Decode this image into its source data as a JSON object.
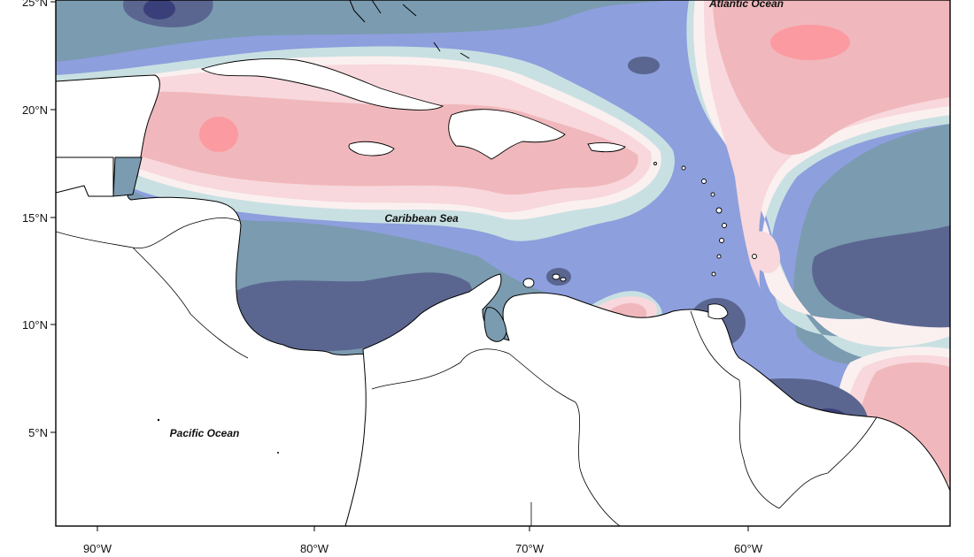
{
  "map": {
    "lat_labels": [
      "25°N",
      "20°N",
      "15°N",
      "10°N",
      "5°N"
    ],
    "lon_labels": [
      "90°W",
      "80°W",
      "70°W",
      "60°W"
    ],
    "ocean_labels": {
      "atlantic": "Atlantic Ocean",
      "caribbean": "Caribbean Sea",
      "pacific": "Pacific Ocean"
    },
    "palette": {
      "dark_navy": "#3a3f7a",
      "navy": "#5a6690",
      "slate": "#7b9bb0",
      "periwinkle": "#8d9fdd",
      "pale_cyan": "#c9e0e2",
      "near_white": "#fbf0f0",
      "light_pink": "#f8d8dc",
      "pink": "#f0b8bc",
      "salmon": "#fb9aa0",
      "land": "#ffffff",
      "coast": "#000000"
    }
  }
}
